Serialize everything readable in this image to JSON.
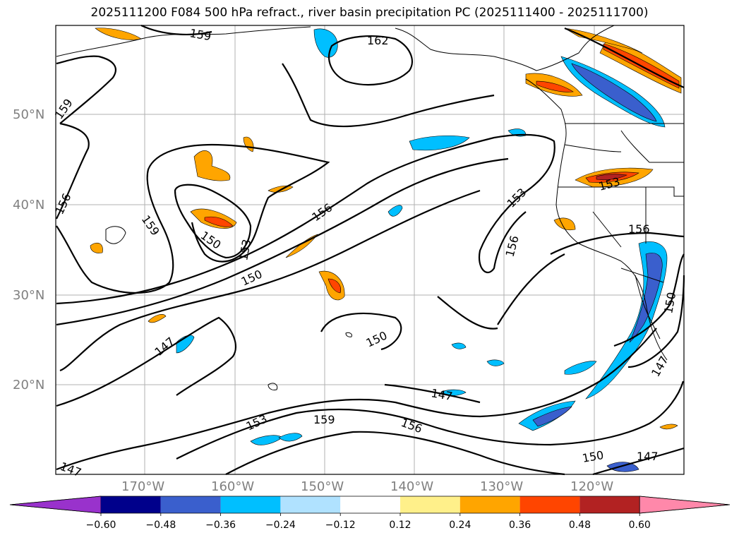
{
  "title": "2025111200 F084 500 hPa refract., river basin precipitation PC (2025111400 - 2025111700)",
  "lat_labels": [
    "50°N",
    "40°N",
    "30°N",
    "20°N"
  ],
  "lon_labels": [
    "170°W",
    "160°W",
    "150°W",
    "140°W",
    "130°W",
    "120°W"
  ],
  "contour_labels": [
    "159",
    "162",
    "159",
    "156",
    "159",
    "150",
    "153",
    "156",
    "150",
    "147",
    "153",
    "156",
    "153",
    "156",
    "150",
    "150",
    "147",
    "147",
    "153",
    "159",
    "156",
    "150",
    "147",
    "147"
  ],
  "colorbar": {
    "ticks": [
      "−0.60",
      "−0.48",
      "−0.36",
      "−0.24",
      "−0.12",
      "0.12",
      "0.24",
      "0.36",
      "0.48",
      "0.60"
    ],
    "colors": [
      "#9932cc",
      "#00008b",
      "#3a5fcd",
      "#00bfff",
      "#b0e2ff",
      "#ffffff",
      "#fff08a",
      "#ffa500",
      "#ff4500",
      "#b22222",
      "#ff88aa"
    ]
  }
}
